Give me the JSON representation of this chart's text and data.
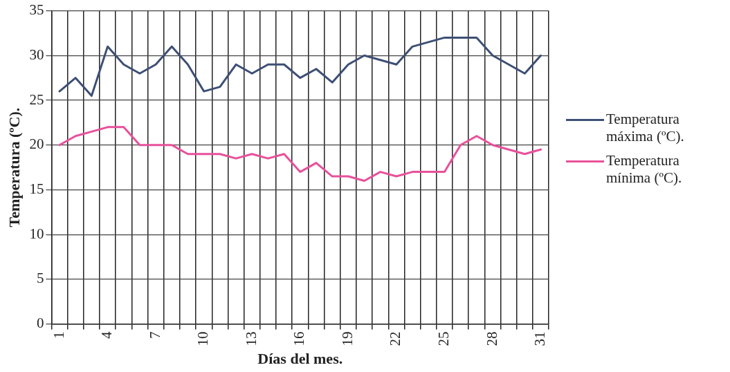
{
  "chart_data": {
    "type": "line",
    "xlabel": "Días del mes.",
    "ylabel": "Temperatura (ºC).",
    "categories": [
      "1",
      null,
      null,
      "4",
      null,
      null,
      "7",
      null,
      null,
      "10",
      null,
      null,
      "13",
      null,
      null,
      "16",
      null,
      null,
      "19",
      null,
      null,
      "22",
      null,
      null,
      "25",
      null,
      null,
      "28",
      null,
      null,
      "31"
    ],
    "series": [
      {
        "name": "Temperatura máxima (ºC).",
        "color": "#3d4f75",
        "values": [
          26,
          27.5,
          25.5,
          31,
          29,
          28,
          29,
          31,
          29,
          26,
          26.5,
          29,
          28,
          29,
          29,
          27.5,
          28.5,
          27,
          29,
          30,
          29.5,
          29,
          31,
          31.5,
          32,
          32,
          32,
          30,
          29,
          28,
          30
        ]
      },
      {
        "name": "Temperatura mínima (ºC).",
        "color": "#e8509a",
        "values": [
          20,
          21,
          21.5,
          22,
          22,
          20,
          20,
          20,
          19,
          19,
          19,
          18.5,
          19,
          18.5,
          19,
          17,
          18,
          16.5,
          16.5,
          16,
          17,
          16.5,
          17,
          17,
          17,
          20,
          21,
          20,
          19.5,
          19,
          19.5
        ]
      }
    ],
    "ylim": [
      0,
      35
    ],
    "yticks": [
      0,
      5,
      10,
      15,
      20,
      25,
      30,
      35
    ],
    "grid": true,
    "legend": "right",
    "marker": "none",
    "line_style": "solid"
  }
}
